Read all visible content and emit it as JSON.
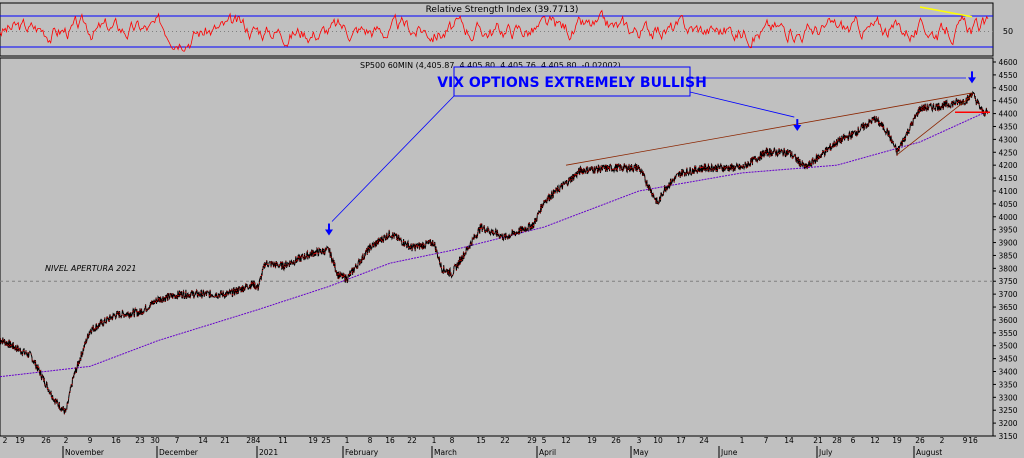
{
  "chart_data": [
    {
      "type": "line",
      "title": "Relative Strength Index (39.7713)",
      "ylim": [
        0,
        100
      ],
      "reference_levels": [
        30,
        70
      ],
      "yticks": [
        "50"
      ],
      "colors": {
        "series": "#ff0000",
        "bands": "#0000ff",
        "trendline": "#ffff00"
      },
      "annotations": [
        {
          "type": "trendline",
          "color": "#ffff00",
          "x": [
            "Jul 26",
            "Aug 16"
          ],
          "y": [
            98,
            78
          ]
        }
      ]
    },
    {
      "type": "line",
      "title": "SP500 60MIN (4,405.87, 4,405.80, 4,405.76, 4,405.80, -0.02002)",
      "ylim": [
        3150,
        4600
      ],
      "yticks": [
        "4600",
        "4550",
        "4500",
        "4450",
        "4400",
        "4350",
        "4300",
        "4250",
        "4200",
        "4150",
        "4100",
        "4050",
        "4000",
        "3950",
        "3900",
        "3850",
        "3800",
        "3750",
        "3700",
        "3650",
        "3600",
        "3550",
        "3500",
        "3450",
        "3400",
        "3350",
        "3300",
        "3250",
        "3200",
        "3150"
      ],
      "xticks": [
        "2",
        "19",
        "26",
        "2",
        "9",
        "16",
        "23",
        "30",
        "7",
        "14",
        "21",
        "28",
        "4",
        "11",
        "19",
        "25",
        "1",
        "8",
        "16",
        "22",
        "1",
        "8",
        "15",
        "22",
        "29",
        "5",
        "12",
        "19",
        "26",
        "3",
        "10",
        "17",
        "24",
        "1",
        "7",
        "14",
        "21",
        "28",
        "6",
        "12",
        "19",
        "26",
        "2",
        "9",
        "16"
      ],
      "months": [
        "November",
        "December",
        "2021",
        "February",
        "March",
        "April",
        "May",
        "June",
        "July",
        "August"
      ],
      "series": [
        {
          "name": "SP500 60MIN",
          "color": "#000000",
          "x": [
            "Oct 12",
            "Oct 22",
            "Oct 29",
            "Nov 2",
            "Nov 4",
            "Nov 9",
            "Nov 16",
            "Nov 23",
            "Dec 1",
            "Dec 8",
            "Dec 15",
            "Dec 22",
            "Dec 30",
            "Jan 4",
            "Jan 6",
            "Jan 11",
            "Jan 19",
            "Jan 26",
            "Jan 29",
            "Feb 1",
            "Feb 8",
            "Feb 16",
            "Feb 22",
            "Mar 1",
            "Mar 4",
            "Mar 8",
            "Mar 15",
            "Mar 22",
            "Mar 30",
            "Apr 5",
            "Apr 12",
            "Apr 16",
            "Apr 26",
            "May 3",
            "May 10",
            "May 12",
            "May 17",
            "May 24",
            "Jun 1",
            "Jun 7",
            "Jun 14",
            "Jun 18",
            "Jun 21",
            "Jun 28",
            "Jul 6",
            "Jul 12",
            "Jul 16",
            "Jul 19",
            "Jul 26",
            "Aug 2",
            "Aug 9",
            "Aug 13",
            "Aug 16",
            "Aug 18",
            "Aug 19"
          ],
          "values": [
            3525,
            3460,
            3290,
            3240,
            3370,
            3560,
            3620,
            3630,
            3680,
            3700,
            3700,
            3700,
            3740,
            3725,
            3820,
            3810,
            3860,
            3870,
            3775,
            3760,
            3880,
            3935,
            3880,
            3900,
            3800,
            3780,
            3960,
            3920,
            3970,
            4060,
            4130,
            4180,
            4190,
            4190,
            4050,
            4110,
            4170,
            4190,
            4190,
            4250,
            4250,
            4190,
            4230,
            4290,
            4320,
            4380,
            4330,
            4250,
            4420,
            4430,
            4450,
            4460,
            4480,
            4405,
            4405
          ]
        },
        {
          "name": "moving average",
          "color": "#6600cc",
          "x": [
            "Oct 12",
            "Nov 9",
            "Dec 1",
            "Jan 4",
            "Jan 26",
            "Feb 16",
            "Mar 8",
            "Apr 5",
            "May 3",
            "Jun 1",
            "Jun 28",
            "Jul 26",
            "Aug 19"
          ],
          "values": [
            3380,
            3420,
            3520,
            3640,
            3730,
            3820,
            3870,
            3960,
            4100,
            4170,
            4200,
            4290,
            4410
          ]
        }
      ],
      "annotations": [
        {
          "type": "text",
          "label": "VIX OPTIONS EXTREMELY BULLISH"
        },
        {
          "type": "text",
          "label": "NIVEL APERTURA 2021"
        },
        {
          "type": "hline",
          "y": 3750
        },
        {
          "type": "trendline",
          "x": [
            "Apr 12",
            "Aug 16"
          ],
          "y": [
            4200,
            4480
          ]
        },
        {
          "type": "trendline",
          "x": [
            "Jul 19",
            "Aug 16"
          ],
          "y": [
            4240,
            4470
          ]
        },
        {
          "type": "hline",
          "y": 4405
        },
        {
          "type": "arrow",
          "x": "Jan 26",
          "y": 3935
        },
        {
          "type": "arrow",
          "x": "Jun 16",
          "y": 4340
        },
        {
          "type": "arrow",
          "x": "Aug 16",
          "y": 4525
        }
      ]
    }
  ]
}
